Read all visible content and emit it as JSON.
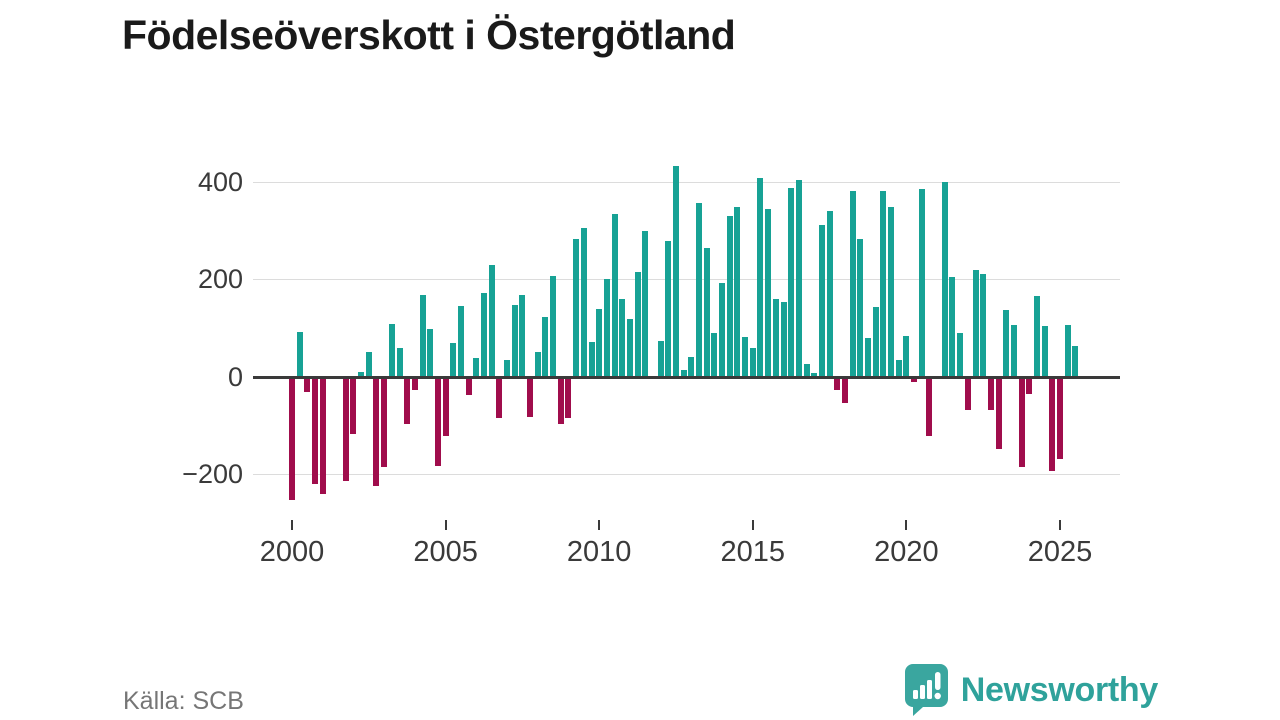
{
  "title": "Födelseöverskott i Östergötland",
  "source": "Källa: SCB",
  "brand": {
    "name": "Newsworthy",
    "color": "#35a49d"
  },
  "colors": {
    "positive_bar": "#17a295",
    "negative_bar": "#a00d4c",
    "gridline": "#dcdcdc",
    "zero_axis": "#3a3a3a",
    "axis_text": "#3a3a3a",
    "source_text": "#767676"
  },
  "chart_data": {
    "type": "bar",
    "title": "Födelseöverskott i Östergötland",
    "frequency": "quarterly",
    "x_start": {
      "year": 2000,
      "quarter": 1
    },
    "x_end": {
      "year": 2025,
      "quarter": 3
    },
    "values": [
      -252,
      93,
      -30,
      -220,
      -239,
      0,
      0,
      -213,
      -117,
      11,
      52,
      -223,
      -185,
      109,
      59,
      -96,
      -27,
      169,
      98,
      -182,
      -120,
      69,
      146,
      -37,
      38,
      172,
      229,
      -85,
      34,
      148,
      169,
      -83,
      52,
      124,
      208,
      -96,
      -85,
      283,
      305,
      71,
      140,
      201,
      335,
      159,
      119,
      215,
      300,
      0,
      73,
      279,
      432,
      14,
      41,
      357,
      265,
      91,
      192,
      331,
      348,
      82,
      59,
      408,
      344,
      160,
      153,
      387,
      405,
      27,
      9,
      311,
      341,
      -27,
      -53,
      382,
      283,
      81,
      143,
      381,
      348,
      35,
      85,
      -10,
      386,
      -122,
      0,
      399,
      205,
      90,
      -67,
      219,
      212,
      -67,
      -147,
      137,
      106,
      -184,
      -34,
      166,
      105,
      -193,
      -169,
      106,
      64
    ],
    "x_tick_labels": [
      "2000",
      "2005",
      "2010",
      "2015",
      "2020",
      "2025"
    ],
    "x_tick_years": [
      2000,
      2005,
      2010,
      2015,
      2020,
      2025
    ],
    "y_ticks": [
      400,
      200,
      0,
      -200
    ],
    "y_tick_labels": [
      "400",
      "200",
      "0",
      "−200"
    ],
    "ylim": [
      -280,
      460
    ],
    "grid": "horizontal",
    "legend": "none",
    "positive_color": "#17a295",
    "negative_color": "#a00d4c"
  }
}
